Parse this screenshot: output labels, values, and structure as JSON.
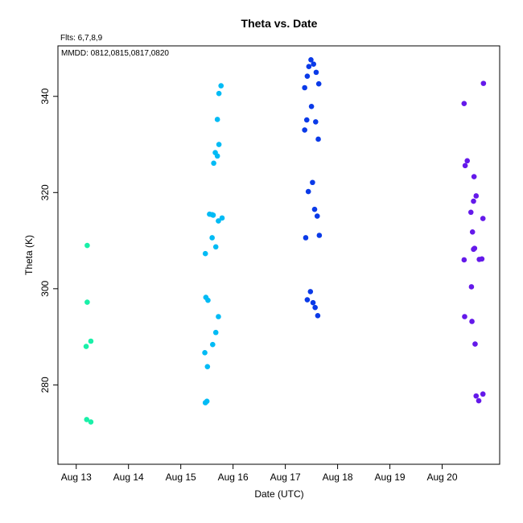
{
  "chart_data": {
    "type": "scatter",
    "title": "Theta  vs. Date",
    "flights_label": "Flts: 6,7,8,9",
    "dates_label": "MMDD: 0812,0815,0817,0820",
    "xlabel": "Date (UTC)",
    "ylabel": "Theta (K)",
    "xlim": [
      12.65,
      21.1
    ],
    "ylim": [
      263.5,
      350.5
    ],
    "x_ticks": [
      {
        "value": 13,
        "label": "Aug 13"
      },
      {
        "value": 14,
        "label": "Aug 14"
      },
      {
        "value": 15,
        "label": "Aug 15"
      },
      {
        "value": 16,
        "label": "Aug 16"
      },
      {
        "value": 17,
        "label": "Aug 17"
      },
      {
        "value": 18,
        "label": "Aug 18"
      },
      {
        "value": 19,
        "label": "Aug 19"
      },
      {
        "value": 20,
        "label": "Aug 20"
      }
    ],
    "y_ticks": [
      {
        "value": 280,
        "label": "280"
      },
      {
        "value": 300,
        "label": "300"
      },
      {
        "value": 320,
        "label": "320"
      },
      {
        "value": 340,
        "label": "340"
      }
    ],
    "grid": false,
    "series": [
      {
        "color": "#19f0a8",
        "points": [
          [
            13.21,
            309.0
          ],
          [
            13.21,
            297.2
          ],
          [
            13.19,
            288.0
          ],
          [
            13.28,
            289.1
          ],
          [
            13.2,
            272.8
          ],
          [
            13.28,
            272.3
          ]
        ]
      },
      {
        "color": "#00bbf5",
        "points": [
          [
            15.77,
            342.2
          ],
          [
            15.73,
            340.6
          ],
          [
            15.7,
            335.2
          ],
          [
            15.73,
            330.0
          ],
          [
            15.66,
            328.3
          ],
          [
            15.7,
            327.6
          ],
          [
            15.63,
            326.1
          ],
          [
            15.55,
            315.5
          ],
          [
            15.62,
            315.3
          ],
          [
            15.6,
            315.4
          ],
          [
            15.79,
            314.7
          ],
          [
            15.72,
            314.1
          ],
          [
            15.6,
            310.6
          ],
          [
            15.67,
            308.7
          ],
          [
            15.47,
            307.3
          ],
          [
            15.48,
            298.2
          ],
          [
            15.52,
            297.6
          ],
          [
            15.72,
            294.2
          ],
          [
            15.67,
            290.9
          ],
          [
            15.61,
            288.4
          ],
          [
            15.46,
            286.7
          ],
          [
            15.51,
            283.8
          ],
          [
            15.5,
            276.6
          ],
          [
            15.47,
            276.3
          ]
        ]
      },
      {
        "color": "#0a3ae8",
        "points": [
          [
            17.49,
            347.6
          ],
          [
            17.45,
            346.2
          ],
          [
            17.54,
            346.7
          ],
          [
            17.59,
            345.0
          ],
          [
            17.42,
            344.2
          ],
          [
            17.64,
            342.6
          ],
          [
            17.37,
            341.8
          ],
          [
            17.5,
            337.9
          ],
          [
            17.41,
            335.1
          ],
          [
            17.58,
            334.7
          ],
          [
            17.37,
            333.0
          ],
          [
            17.63,
            331.1
          ],
          [
            17.52,
            322.1
          ],
          [
            17.44,
            320.2
          ],
          [
            17.56,
            316.5
          ],
          [
            17.61,
            315.1
          ],
          [
            17.65,
            311.1
          ],
          [
            17.39,
            310.6
          ],
          [
            17.48,
            299.4
          ],
          [
            17.42,
            297.7
          ],
          [
            17.53,
            297.1
          ],
          [
            17.57,
            296.1
          ],
          [
            17.62,
            294.4
          ]
        ]
      },
      {
        "color": "#6419ea",
        "points": [
          [
            20.79,
            342.7
          ],
          [
            20.42,
            338.5
          ],
          [
            20.48,
            326.6
          ],
          [
            20.44,
            325.6
          ],
          [
            20.61,
            323.3
          ],
          [
            20.65,
            319.3
          ],
          [
            20.6,
            318.2
          ],
          [
            20.55,
            315.9
          ],
          [
            20.78,
            314.6
          ],
          [
            20.58,
            311.8
          ],
          [
            20.62,
            308.4
          ],
          [
            20.6,
            308.2
          ],
          [
            20.42,
            306.0
          ],
          [
            20.71,
            306.1
          ],
          [
            20.76,
            306.2
          ],
          [
            20.56,
            300.4
          ],
          [
            20.43,
            294.2
          ],
          [
            20.57,
            293.2
          ],
          [
            20.63,
            288.5
          ],
          [
            20.78,
            278.1
          ],
          [
            20.65,
            277.7
          ],
          [
            20.7,
            276.7
          ]
        ]
      }
    ]
  }
}
